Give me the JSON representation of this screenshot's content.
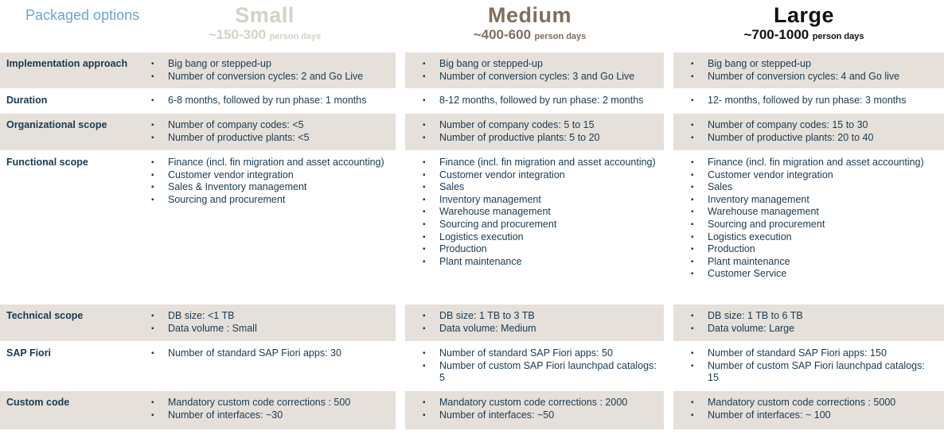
{
  "header": {
    "title": "Packaged options",
    "columns": [
      {
        "name": "Small",
        "range": "~150-300",
        "unit": "person days",
        "color": "#d6d0c7"
      },
      {
        "name": "Medium",
        "range": "~400-600",
        "unit": "person days",
        "color": "#7e6f5e"
      },
      {
        "name": "Large",
        "range": "~700-1000",
        "unit": "person days",
        "color": "#111111"
      }
    ]
  },
  "colors": {
    "title_blue": "#6ea5cf",
    "row_stripe_beige": "#e5e0da",
    "body_text_navy": "#1a3a50"
  },
  "rows": [
    {
      "label": "Implementation approach",
      "small": [
        "Big bang or stepped-up",
        "Number of conversion cycles: 2 and Go Live"
      ],
      "medium": [
        "Big bang or stepped-up",
        "Number of conversion cycles: 3 and Go Live"
      ],
      "large": [
        "Big bang or stepped-up",
        "Number of conversion cycles: 4 and  Go live"
      ]
    },
    {
      "label": "Duration",
      "small": [
        "6-8 months, followed by run phase: 1 months"
      ],
      "medium": [
        "8-12 months, followed by run phase: 2 months"
      ],
      "large": [
        "12- months, followed by run phase: 3 months"
      ]
    },
    {
      "label": "Organizational scope",
      "small": [
        "Number of company codes: <5",
        "Number of productive plants: <5"
      ],
      "medium": [
        "Number of company codes: 5 to 15",
        "Number of productive plants: 5 to 20"
      ],
      "large": [
        "Number of company codes: 15 to 30",
        "Number of productive plants: 20 to 40"
      ]
    },
    {
      "label": "Functional scope",
      "small": [
        "Finance (incl. fin migration and asset accounting)",
        "Customer vendor integration",
        "Sales & Inventory management",
        "Sourcing and procurement"
      ],
      "medium": [
        "Finance (incl. fin migration and asset accounting)",
        "Customer vendor integration",
        "Sales",
        "Inventory management",
        "Warehouse management",
        "Sourcing and procurement",
        "Logistics execution",
        "Production",
        "Plant maintenance"
      ],
      "large": [
        "Finance (incl. fin migration and asset accounting)",
        "Customer vendor integration",
        "Sales",
        "Inventory management",
        "Warehouse management",
        "Sourcing and procurement",
        "Logistics execution",
        "Production",
        "Plant maintenance",
        "Customer Service"
      ]
    },
    {
      "label": "Technical scope",
      "small": [
        "DB size: <1 TB",
        "Data volume : Small"
      ],
      "medium": [
        "DB size: 1 TB to 3 TB",
        "Data volume: Medium"
      ],
      "large": [
        "DB size: 1 TB to 6 TB",
        "Data volume: Large"
      ]
    },
    {
      "label": "SAP Fiori",
      "small": [
        "Number of standard SAP Fiori apps: 30"
      ],
      "medium": [
        "Number of standard SAP Fiori apps: 50",
        "Number of custom SAP Fiori launchpad catalogs: 5"
      ],
      "large": [
        "Number of standard SAP Fiori apps: 150",
        "Number of custom SAP Fiori launchpad catalogs: 15"
      ]
    },
    {
      "label": "Custom code",
      "small": [
        "Mandatory custom code corrections : 500",
        "Number of interfaces: ~30"
      ],
      "medium": [
        "Mandatory custom code corrections : 2000",
        "Number of interfaces: ~50"
      ],
      "large": [
        "Mandatory custom code corrections : 5000",
        "Number of interfaces:  ~ 100"
      ]
    }
  ]
}
